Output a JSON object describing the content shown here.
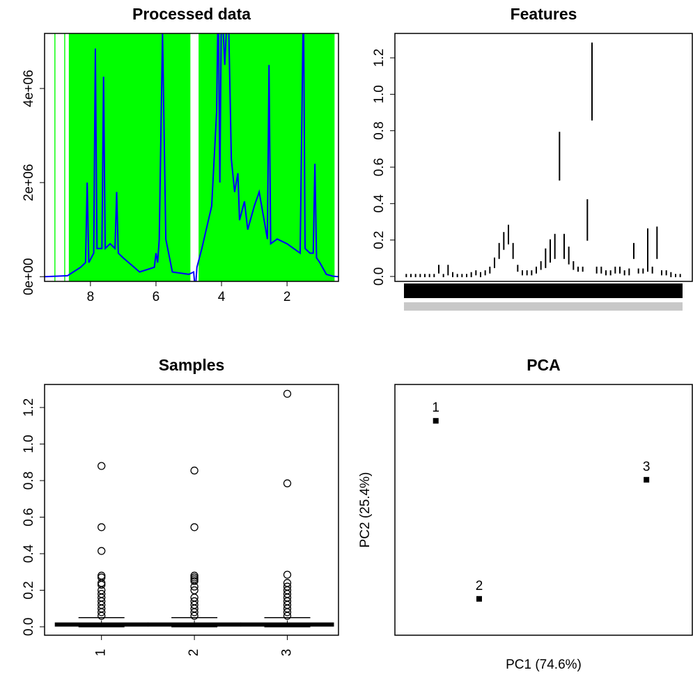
{
  "chart_data": [
    {
      "type": "line",
      "title": "Processed data",
      "x": [
        9.4,
        8.7,
        8.3,
        8.15,
        8.1,
        8.05,
        7.9,
        7.85,
        7.8,
        7.65,
        7.6,
        7.55,
        7.4,
        7.25,
        7.2,
        7.15,
        7.0,
        6.5,
        6.05,
        6.0,
        5.95,
        5.9,
        5.8,
        5.7,
        5.5,
        5.0,
        4.85,
        4.8,
        4.75,
        4.6,
        4.3,
        4.15,
        4.1,
        4.05,
        4.0,
        3.9,
        3.8,
        3.7,
        3.6,
        3.5,
        3.45,
        3.3,
        3.2,
        3.0,
        2.85,
        2.6,
        2.55,
        2.5,
        2.3,
        2.0,
        1.6,
        1.5,
        1.45,
        1.3,
        1.2,
        1.15,
        1.1,
        1.0,
        0.8,
        0.6,
        0.43
      ],
      "values": [
        0,
        20000,
        200000,
        300000,
        2000000,
        300000,
        500000,
        4850000,
        600000,
        600000,
        4250000,
        600000,
        700000,
        600000,
        1800000,
        500000,
        400000,
        100000,
        200000,
        500000,
        300000,
        800000,
        5200000,
        800000,
        100000,
        50000,
        100000,
        -300000,
        200000,
        600000,
        1500000,
        3500000,
        6000000,
        2000000,
        6000000,
        4500000,
        6000000,
        2500000,
        1800000,
        2200000,
        1200000,
        1600000,
        1000000,
        1500000,
        1800000,
        800000,
        4500000,
        700000,
        800000,
        700000,
        500000,
        6000000,
        600000,
        500000,
        500000,
        2400000,
        400000,
        300000,
        50000,
        10000,
        0
      ],
      "color": "#0000ff",
      "bands": [
        [
          9.1,
          9.07
        ],
        [
          8.8,
          8.77
        ],
        [
          8.66,
          4.95
        ],
        [
          4.7,
          0.55
        ]
      ],
      "band_color": "#00ff00",
      "xlim": [
        9.4,
        0.43
      ],
      "xticks": [
        8,
        6,
        4,
        2
      ],
      "ylim": [
        -100000,
        5170000
      ],
      "yticks": [
        {
          "value": 0,
          "label": "0e+00"
        },
        {
          "value": 2000000,
          "label": "2e+06"
        },
        {
          "value": 4000000,
          "label": "4e+06"
        }
      ]
    },
    {
      "type": "range",
      "title": "Features",
      "low": [
        0,
        0,
        0,
        0,
        0,
        0,
        0,
        0.02,
        0,
        0.01,
        0,
        0,
        0,
        0,
        0,
        0.01,
        0,
        0.01,
        0.02,
        0.05,
        0.1,
        0.15,
        0.18,
        0.1,
        0.03,
        0.01,
        0.01,
        0.01,
        0.02,
        0.04,
        0.05,
        0.08,
        0.1,
        0.53,
        0.1,
        0.07,
        0.04,
        0.03,
        0.03,
        0.2,
        0.86,
        0.02,
        0.02,
        0.01,
        0.01,
        0.02,
        0.02,
        0.01,
        0.01,
        0.1,
        0.02,
        0.02,
        0.03,
        0.02,
        0.1,
        0.01,
        0.01,
        0,
        0,
        0
      ],
      "high": [
        0.01,
        0.01,
        0.01,
        0.01,
        0.01,
        0.01,
        0.01,
        0.06,
        0.01,
        0.06,
        0.02,
        0.01,
        0.01,
        0.01,
        0.02,
        0.03,
        0.02,
        0.03,
        0.05,
        0.1,
        0.18,
        0.24,
        0.28,
        0.18,
        0.06,
        0.03,
        0.03,
        0.03,
        0.05,
        0.08,
        0.15,
        0.2,
        0.23,
        0.79,
        0.23,
        0.16,
        0.08,
        0.05,
        0.05,
        0.42,
        1.28,
        0.05,
        0.05,
        0.03,
        0.03,
        0.05,
        0.05,
        0.03,
        0.04,
        0.18,
        0.04,
        0.04,
        0.26,
        0.05,
        0.27,
        0.03,
        0.03,
        0.02,
        0.01,
        0.01
      ],
      "color": "#000000",
      "ylim": [
        -0.027,
        1.334
      ],
      "yticks": [
        {
          "value": 0,
          "label": "0.0"
        },
        0.2,
        0.4,
        0.6,
        0.8,
        {
          "value": 1,
          "label": "1.0"
        },
        1.2
      ]
    },
    {
      "type": "boxplot",
      "title": "Samples",
      "categories": [
        "1",
        "2",
        "3"
      ],
      "boxes": [
        {
          "whisker_low": 0,
          "q1": 0.005,
          "median": 0.012,
          "q3": 0.02,
          "whisker_high": 0.05,
          "outliers": [
            0.88,
            0.545,
            0.415,
            0.28,
            0.27,
            0.24,
            0.23,
            0.2,
            0.18,
            0.16,
            0.14,
            0.12,
            0.1,
            0.08,
            0.06
          ]
        },
        {
          "whisker_low": 0,
          "q1": 0.005,
          "median": 0.012,
          "q3": 0.02,
          "whisker_high": 0.05,
          "outliers": [
            0.855,
            0.545,
            0.28,
            0.27,
            0.26,
            0.25,
            0.22,
            0.2,
            0.16,
            0.14,
            0.12,
            0.1,
            0.08,
            0.06
          ]
        },
        {
          "whisker_low": 0,
          "q1": 0.005,
          "median": 0.012,
          "q3": 0.02,
          "whisker_high": 0.05,
          "outliers": [
            1.275,
            0.785,
            0.285,
            0.24,
            0.22,
            0.2,
            0.18,
            0.16,
            0.14,
            0.12,
            0.1,
            0.08,
            0.06
          ]
        }
      ],
      "ylim": [
        -0.046,
        1.326
      ],
      "yticks": [
        {
          "value": 0,
          "label": "0.0"
        },
        0.2,
        0.4,
        0.6,
        0.8,
        {
          "value": 1,
          "label": "1.0"
        },
        1.2
      ]
    },
    {
      "type": "scatter",
      "title": "PCA",
      "xlabel": "PC1 (74.6%)",
      "ylabel": "PC2 (25.4%)",
      "x": [
        -0.87,
        -0.52,
        0.83
      ],
      "values": [
        0.71,
        -0.71,
        0.24
      ],
      "labels": [
        "1",
        "2",
        "3"
      ],
      "xlim": [
        -1.2,
        1.2
      ],
      "ylim": [
        -1,
        1
      ]
    }
  ]
}
